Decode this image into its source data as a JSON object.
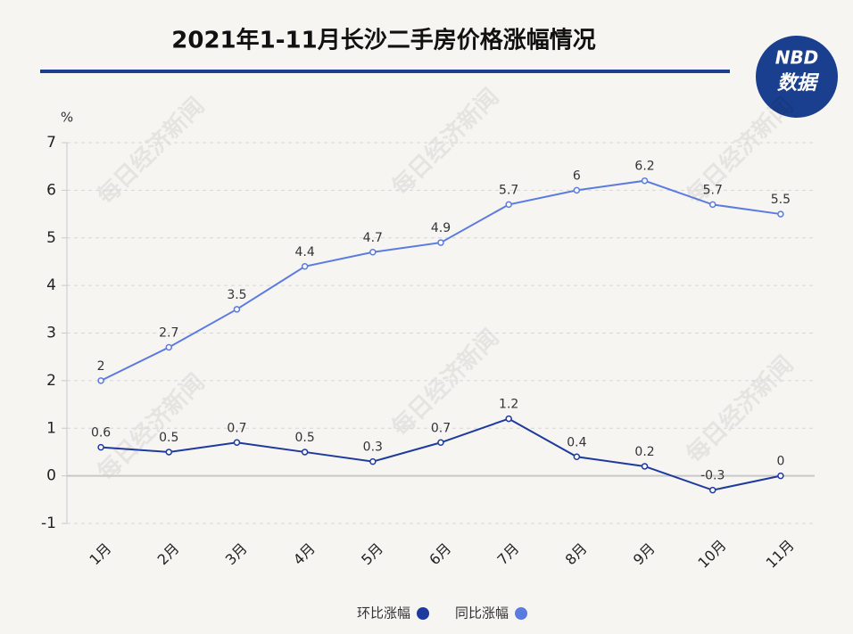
{
  "chart_data": {
    "type": "line",
    "title": "2021年1-11月长沙二手房价格涨幅情况",
    "y_label": "%",
    "logo": {
      "line1": "NBD",
      "line2": "数据"
    },
    "watermark": "每日经济新闻",
    "categories": [
      "1月",
      "2月",
      "3月",
      "4月",
      "5月",
      "6月",
      "7月",
      "8月",
      "9月",
      "10月",
      "11月"
    ],
    "series": [
      {
        "name": "环比涨幅",
        "color": "#1f3a9e",
        "values": [
          0.6,
          0.5,
          0.7,
          0.5,
          0.3,
          0.7,
          1.2,
          0.4,
          0.2,
          -0.3,
          0
        ]
      },
      {
        "name": "同比涨幅",
        "color": "#5b7be0",
        "values": [
          2,
          2.7,
          3.5,
          4.4,
          4.7,
          4.9,
          5.7,
          6,
          6.2,
          5.7,
          5.5
        ]
      }
    ],
    "ylim": [
      -1,
      7
    ],
    "yticks": [
      -1,
      0,
      1,
      2,
      3,
      4,
      5,
      6,
      7
    ],
    "grid": true,
    "legend": "bottom"
  }
}
